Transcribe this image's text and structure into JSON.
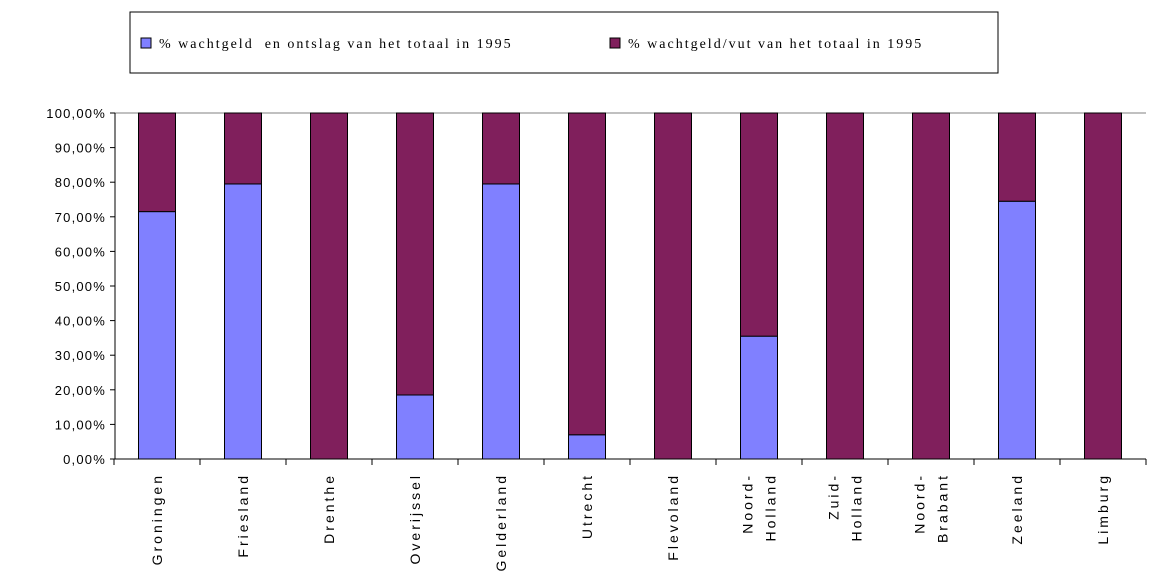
{
  "chart_data": {
    "type": "bar",
    "stacked": true,
    "categories": [
      [
        "Groningen"
      ],
      [
        "Friesland"
      ],
      [
        "Drenthe"
      ],
      [
        "Overijssel"
      ],
      [
        "Gelderland"
      ],
      [
        "Utrecht"
      ],
      [
        "Flevoland"
      ],
      [
        "Noord-",
        "Holland"
      ],
      [
        "Zuid-",
        "Holland"
      ],
      [
        "Noord-",
        "Brabant"
      ],
      [
        "Zeeland"
      ],
      [
        "Limburg"
      ]
    ],
    "series": [
      {
        "name": "% wachtgeld  en ontslag van het totaal in 1995",
        "color": "#8080ff",
        "values": [
          71.5,
          79.5,
          0,
          18.5,
          79.5,
          7,
          0,
          35.5,
          0,
          0,
          74.5,
          0
        ]
      },
      {
        "name": "% wachtgeld/vut van het totaal in 1995",
        "color": "#801f5c",
        "values": [
          28.5,
          20.5,
          100,
          81.5,
          20.5,
          93,
          100,
          64.5,
          100,
          100,
          25.5,
          100
        ]
      }
    ],
    "ylim": [
      0,
      100
    ],
    "yticks": [
      "0,00%",
      "10,00%",
      "20,00%",
      "30,00%",
      "40,00%",
      "50,00%",
      "60,00%",
      "70,00%",
      "80,00%",
      "90,00%",
      "100,00%"
    ],
    "legend_position": "top",
    "grid": false,
    "title": "",
    "xlabel": "",
    "ylabel": ""
  }
}
